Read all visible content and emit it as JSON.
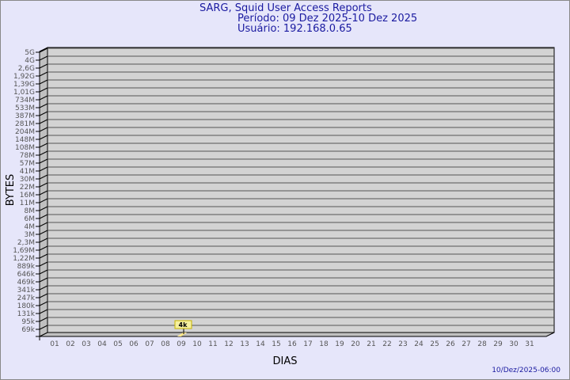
{
  "header": {
    "title": "SARG, Squid User Access Reports",
    "period": "Período: 09 Dez 2025-10 Dez 2025",
    "user": "Usuário: 192.168.0.65"
  },
  "footer": {
    "timestamp": "10/Dez/2025-06:00"
  },
  "colors": {
    "background": "#e6e6fa",
    "plot_wall": "#d3d3d3",
    "bar": "#ffe88c",
    "title": "#1a1aa0"
  },
  "chart_data": {
    "type": "bar",
    "xlabel": "DIAS",
    "ylabel": "BYTES",
    "y_scale": "log",
    "y_ticks": [
      "5G",
      "4G",
      "2,6G",
      "1,92G",
      "1,39G",
      "1,01G",
      "734M",
      "533M",
      "387M",
      "281M",
      "204M",
      "148M",
      "108M",
      "78M",
      "57M",
      "41M",
      "30M",
      "22M",
      "16M",
      "11M",
      "8M",
      "6M",
      "4M",
      "3M",
      "2,3M",
      "1,69M",
      "1,22M",
      "889k",
      "646k",
      "469k",
      "341k",
      "247k",
      "180k",
      "131k",
      "95k",
      "69k"
    ],
    "categories": [
      "01",
      "02",
      "03",
      "04",
      "05",
      "06",
      "07",
      "08",
      "09",
      "10",
      "11",
      "12",
      "13",
      "14",
      "15",
      "16",
      "17",
      "18",
      "19",
      "20",
      "21",
      "22",
      "23",
      "24",
      "25",
      "26",
      "27",
      "28",
      "29",
      "30",
      "31"
    ],
    "bars": [
      {
        "day": "09",
        "value": 4000,
        "label": "4k"
      }
    ],
    "grid": true
  }
}
